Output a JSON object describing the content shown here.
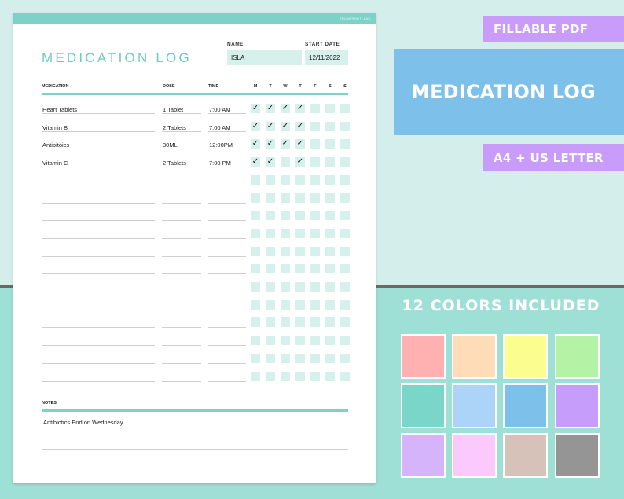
{
  "sheet": {
    "brand": "TRUMPSHOTLAND",
    "title": "MEDICATION LOG",
    "name_label": "NAME",
    "name_value": "ISLA",
    "start_label": "START DATE",
    "start_value": "12/11/2022",
    "columns": {
      "medication": "MEDICATION",
      "dose": "DOSE",
      "time": "TIME"
    },
    "days": [
      "M",
      "T",
      "W",
      "T",
      "F",
      "S",
      "S"
    ],
    "rows": [
      {
        "medication": "Heart Tablets",
        "dose": "1 Tablet",
        "time": "7:00 AM",
        "checks": [
          true,
          true,
          true,
          true,
          false,
          false,
          false
        ]
      },
      {
        "medication": "Vitamin B",
        "dose": "2 Tablets",
        "time": "7:00 AM",
        "checks": [
          true,
          true,
          true,
          true,
          false,
          false,
          false
        ]
      },
      {
        "medication": "Antibitoics",
        "dose": "30ML",
        "time": "12:00PM",
        "checks": [
          true,
          true,
          true,
          true,
          false,
          false,
          false
        ]
      },
      {
        "medication": "Vitamin C",
        "dose": "2 Tablets",
        "time": "7:00 PM",
        "checks": [
          true,
          true,
          false,
          true,
          false,
          false,
          false
        ]
      },
      {
        "medication": "",
        "dose": "",
        "time": "",
        "checks": [
          false,
          false,
          false,
          false,
          false,
          false,
          false
        ]
      },
      {
        "medication": "",
        "dose": "",
        "time": "",
        "checks": [
          false,
          false,
          false,
          false,
          false,
          false,
          false
        ]
      },
      {
        "medication": "",
        "dose": "",
        "time": "",
        "checks": [
          false,
          false,
          false,
          false,
          false,
          false,
          false
        ]
      },
      {
        "medication": "",
        "dose": "",
        "time": "",
        "checks": [
          false,
          false,
          false,
          false,
          false,
          false,
          false
        ]
      },
      {
        "medication": "",
        "dose": "",
        "time": "",
        "checks": [
          false,
          false,
          false,
          false,
          false,
          false,
          false
        ]
      },
      {
        "medication": "",
        "dose": "",
        "time": "",
        "checks": [
          false,
          false,
          false,
          false,
          false,
          false,
          false
        ]
      },
      {
        "medication": "",
        "dose": "",
        "time": "",
        "checks": [
          false,
          false,
          false,
          false,
          false,
          false,
          false
        ]
      },
      {
        "medication": "",
        "dose": "",
        "time": "",
        "checks": [
          false,
          false,
          false,
          false,
          false,
          false,
          false
        ]
      },
      {
        "medication": "",
        "dose": "",
        "time": "",
        "checks": [
          false,
          false,
          false,
          false,
          false,
          false,
          false
        ]
      },
      {
        "medication": "",
        "dose": "",
        "time": "",
        "checks": [
          false,
          false,
          false,
          false,
          false,
          false,
          false
        ]
      },
      {
        "medication": "",
        "dose": "",
        "time": "",
        "checks": [
          false,
          false,
          false,
          false,
          false,
          false,
          false
        ]
      },
      {
        "medication": "",
        "dose": "",
        "time": "",
        "checks": [
          false,
          false,
          false,
          false,
          false,
          false,
          false
        ]
      }
    ],
    "notes_label": "NOTES",
    "notes": [
      "Antibiotics End on Wednesday",
      ""
    ]
  },
  "promo": {
    "fillable": "FILLABLE PDF",
    "banner": "MEDICATION LOG",
    "sizes": "A4 + US LETTER",
    "colors_heading": "12 COLORS INCLUDED",
    "swatches": [
      "#ffb0b0",
      "#ffdcb8",
      "#fbfd8f",
      "#b4f2a6",
      "#7ad6c8",
      "#acd4f8",
      "#7dc1ea",
      "#c79dfb",
      "#d6b4fb",
      "#fcc9fc",
      "#d7c2ba",
      "#959595"
    ]
  },
  "theme": {
    "accent": "#7ed1c6",
    "cell": "#d6f1ec",
    "purple": "#c99bfb",
    "blue": "#7dc1ea"
  }
}
